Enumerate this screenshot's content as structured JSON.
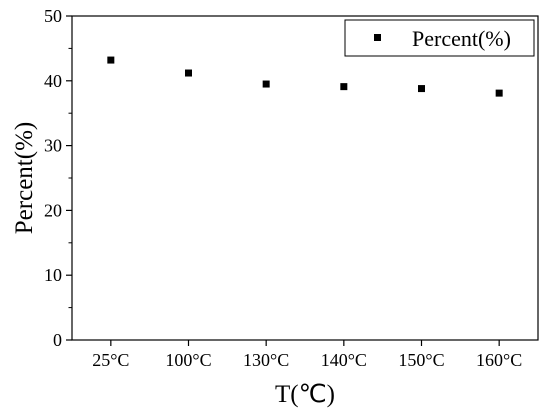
{
  "chart_data": {
    "type": "scatter",
    "categories": [
      "25°C",
      "100°C",
      "130°C",
      "140°C",
      "150°C",
      "160°C"
    ],
    "series": [
      {
        "name": "Percent(%)",
        "values": [
          43.2,
          41.2,
          39.5,
          39.1,
          38.8,
          38.1
        ],
        "color": "#000000",
        "marker": "square"
      }
    ],
    "xlabel": "T(℃)",
    "ylabel": "Percent(%)",
    "ylim": [
      0,
      50
    ],
    "yticks": [
      0,
      10,
      20,
      30,
      40,
      50
    ],
    "grid": false,
    "legend_position": "top-right"
  }
}
